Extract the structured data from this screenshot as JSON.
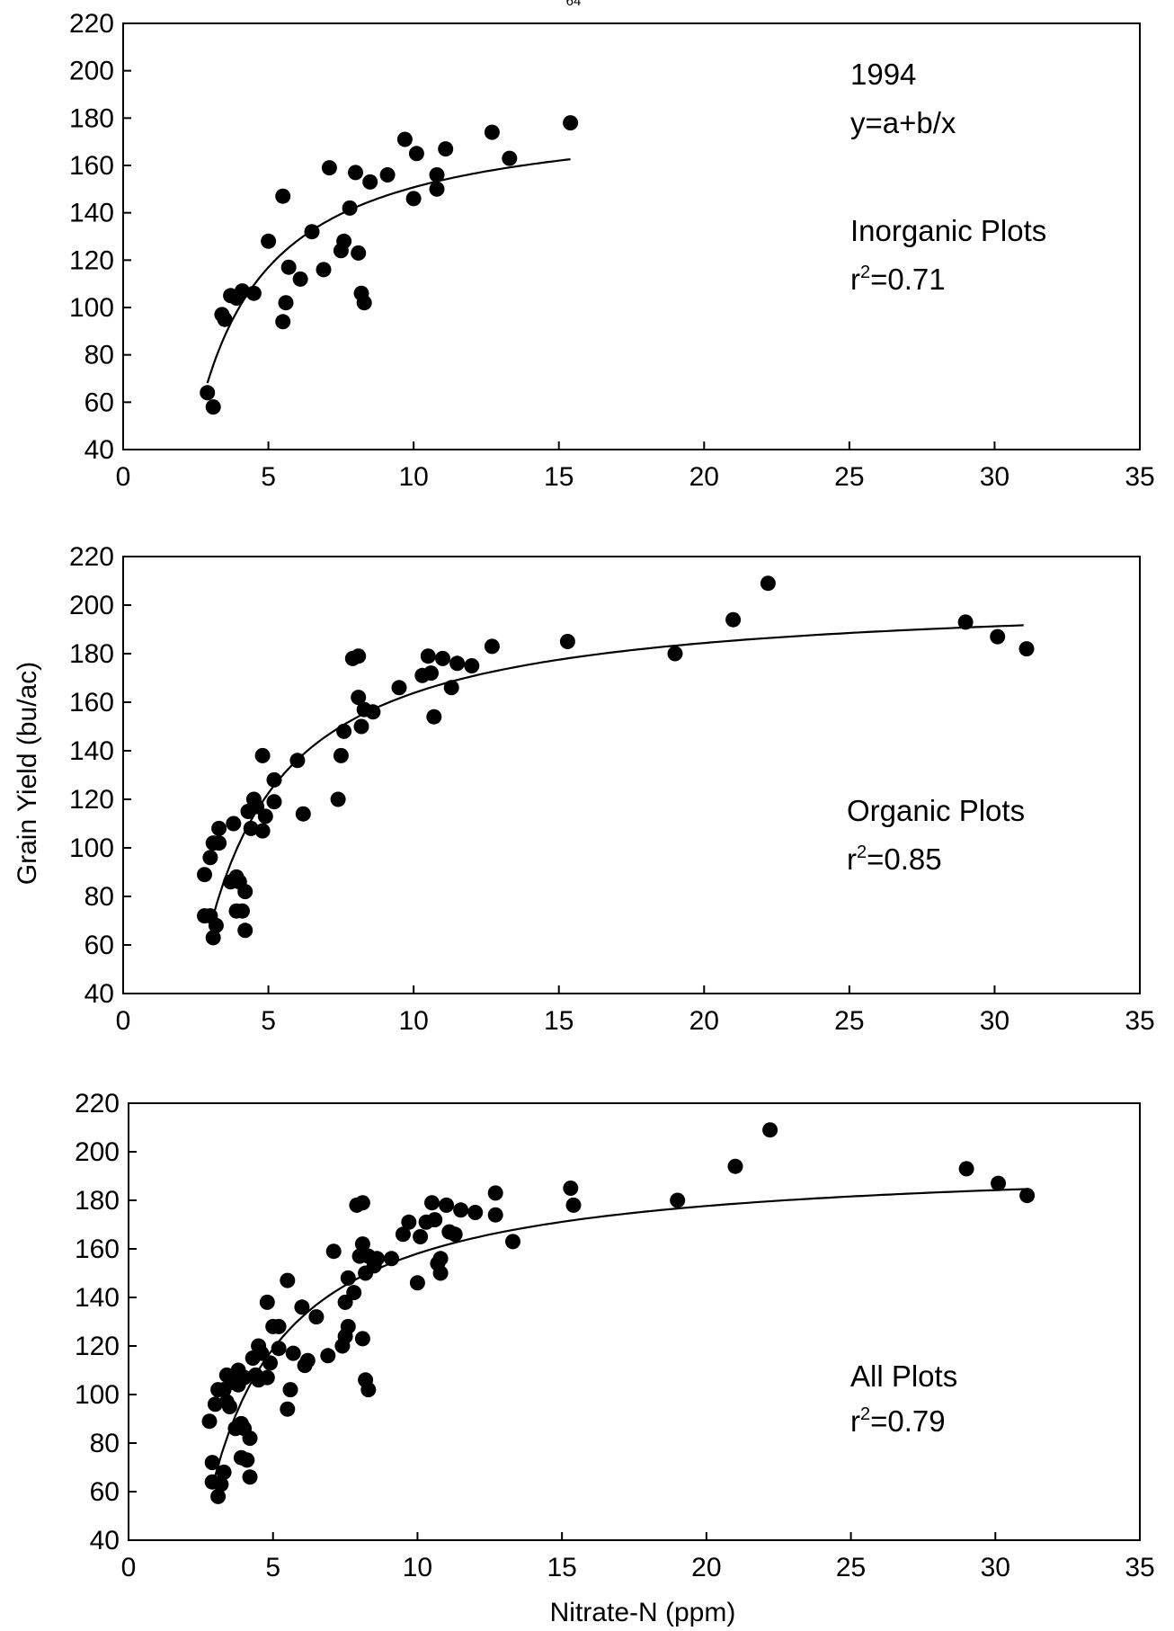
{
  "page_number": "64",
  "shared": {
    "xlabel": "Nitrate-N (ppm)",
    "ylabel": "Grain Yield (bu/ac)"
  },
  "chart_data": [
    {
      "type": "scatter",
      "title": "",
      "xlim": [
        0,
        35
      ],
      "ylim": [
        40,
        220
      ],
      "x_ticks": [
        0,
        5,
        10,
        15,
        20,
        25,
        30,
        35
      ],
      "y_ticks": [
        40,
        60,
        80,
        100,
        120,
        140,
        160,
        180,
        200,
        220
      ],
      "annotations": [
        "1994",
        "y=a+b/x",
        "Inorganic Plots",
        "r",
        "2",
        "=0.71"
      ],
      "fit": {
        "x_range": [
          2.9,
          15.4
        ],
        "points": [
          [
            2.9,
            64
          ],
          [
            3.5,
            92
          ],
          [
            4.5,
            112
          ],
          [
            6,
            128
          ],
          [
            8,
            141
          ],
          [
            10,
            150
          ],
          [
            12.5,
            157
          ],
          [
            15.4,
            163
          ]
        ]
      },
      "series": [
        {
          "points": [
            [
              2.9,
              64
            ],
            [
              3.1,
              58
            ],
            [
              3.4,
              97
            ],
            [
              3.5,
              95
            ],
            [
              3.7,
              105
            ],
            [
              3.9,
              104
            ],
            [
              4.1,
              107
            ],
            [
              4.5,
              106
            ],
            [
              5.0,
              128
            ],
            [
              5.5,
              147
            ],
            [
              5.6,
              102
            ],
            [
              5.5,
              94
            ],
            [
              5.7,
              117
            ],
            [
              6.1,
              112
            ],
            [
              6.5,
              132
            ],
            [
              6.9,
              116
            ],
            [
              7.1,
              159
            ],
            [
              7.5,
              124
            ],
            [
              7.6,
              128
            ],
            [
              7.8,
              142
            ],
            [
              8.0,
              157
            ],
            [
              8.1,
              123
            ],
            [
              8.2,
              106
            ],
            [
              8.3,
              102
            ],
            [
              8.5,
              153
            ],
            [
              9.1,
              156
            ],
            [
              9.7,
              171
            ],
            [
              10.0,
              146
            ],
            [
              10.1,
              165
            ],
            [
              10.8,
              156
            ],
            [
              10.8,
              150
            ],
            [
              11.1,
              167
            ],
            [
              12.7,
              174
            ],
            [
              13.3,
              163
            ],
            [
              15.4,
              178
            ]
          ]
        }
      ]
    },
    {
      "type": "scatter",
      "title": "",
      "xlim": [
        0,
        35
      ],
      "ylim": [
        40,
        220
      ],
      "x_ticks": [
        0,
        5,
        10,
        15,
        20,
        25,
        30,
        35
      ],
      "y_ticks": [
        40,
        60,
        80,
        100,
        120,
        140,
        160,
        180,
        200,
        220
      ],
      "annotations": [
        "Organic Plots",
        "r",
        "2",
        "=0.85"
      ],
      "fit": {
        "x_range": [
          3,
          31
        ],
        "points": [
          [
            3,
            70
          ],
          [
            3.5,
            88
          ],
          [
            4,
            101
          ],
          [
            5,
            120
          ],
          [
            6,
            134
          ],
          [
            8,
            152
          ],
          [
            10,
            165
          ],
          [
            12.5,
            173
          ],
          [
            15,
            178
          ],
          [
            20,
            185
          ],
          [
            25,
            189
          ],
          [
            31,
            192
          ]
        ]
      },
      "series": [
        {
          "points": [
            [
              2.8,
              89
            ],
            [
              2.8,
              72
            ],
            [
              3.0,
              96
            ],
            [
              3.0,
              72
            ],
            [
              3.1,
              102
            ],
            [
              3.1,
              63
            ],
            [
              3.2,
              68
            ],
            [
              3.3,
              108
            ],
            [
              3.3,
              102
            ],
            [
              3.7,
              86
            ],
            [
              3.8,
              110
            ],
            [
              3.9,
              88
            ],
            [
              3.9,
              74
            ],
            [
              4.0,
              86
            ],
            [
              4.1,
              74
            ],
            [
              4.2,
              82
            ],
            [
              4.2,
              66
            ],
            [
              4.3,
              115
            ],
            [
              4.4,
              108
            ],
            [
              4.5,
              120
            ],
            [
              4.6,
              117
            ],
            [
              4.8,
              107
            ],
            [
              4.9,
              113
            ],
            [
              4.8,
              138
            ],
            [
              5.2,
              119
            ],
            [
              5.2,
              128
            ],
            [
              6.0,
              136
            ],
            [
              6.2,
              114
            ],
            [
              7.4,
              120
            ],
            [
              7.5,
              138
            ],
            [
              7.6,
              148
            ],
            [
              7.9,
              178
            ],
            [
              8.1,
              162
            ],
            [
              8.1,
              179
            ],
            [
              8.2,
              150
            ],
            [
              8.3,
              157
            ],
            [
              8.6,
              156
            ],
            [
              9.5,
              166
            ],
            [
              10.3,
              171
            ],
            [
              10.5,
              179
            ],
            [
              10.6,
              172
            ],
            [
              10.7,
              154
            ],
            [
              11.0,
              178
            ],
            [
              11.3,
              166
            ],
            [
              11.5,
              176
            ],
            [
              12.0,
              175
            ],
            [
              12.7,
              183
            ],
            [
              15.3,
              185
            ],
            [
              19.0,
              180
            ],
            [
              21.0,
              194
            ],
            [
              22.2,
              209
            ],
            [
              29.0,
              193
            ],
            [
              30.1,
              187
            ],
            [
              31.1,
              182
            ]
          ]
        }
      ]
    },
    {
      "type": "scatter",
      "title": "",
      "xlim": [
        0,
        35
      ],
      "ylim": [
        40,
        220
      ],
      "x_ticks": [
        0,
        5,
        10,
        15,
        20,
        25,
        30,
        35
      ],
      "y_ticks": [
        40,
        60,
        80,
        100,
        120,
        140,
        160,
        180,
        200,
        220
      ],
      "annotations": [
        "All Plots",
        "r",
        "2",
        "=0.79"
      ],
      "fit": {
        "x_range": [
          3,
          31
        ],
        "points": [
          [
            3,
            68
          ],
          [
            3.5,
            86
          ],
          [
            4,
            99
          ],
          [
            5,
            117
          ],
          [
            6,
            130
          ],
          [
            8,
            147
          ],
          [
            10,
            159
          ],
          [
            12.5,
            166
          ],
          [
            15,
            172
          ],
          [
            20,
            178
          ],
          [
            25,
            182
          ],
          [
            31,
            185
          ]
        ]
      },
      "series": [
        {
          "points": [
            [
              2.8,
              89
            ],
            [
              2.9,
              72
            ],
            [
              2.9,
              64
            ],
            [
              3.0,
              96
            ],
            [
              3.1,
              102
            ],
            [
              3.1,
              58
            ],
            [
              3.2,
              63
            ],
            [
              3.3,
              68
            ],
            [
              3.3,
              102
            ],
            [
              3.4,
              97
            ],
            [
              3.4,
              108
            ],
            [
              3.5,
              95
            ],
            [
              3.6,
              105
            ],
            [
              3.7,
              86
            ],
            [
              3.8,
              110
            ],
            [
              3.8,
              104
            ],
            [
              3.9,
              88
            ],
            [
              3.9,
              74
            ],
            [
              4.0,
              107
            ],
            [
              4.0,
              86
            ],
            [
              4.1,
              73
            ],
            [
              4.2,
              82
            ],
            [
              4.2,
              66
            ],
            [
              4.3,
              115
            ],
            [
              4.4,
              108
            ],
            [
              4.5,
              120
            ],
            [
              4.5,
              106
            ],
            [
              4.6,
              117
            ],
            [
              4.8,
              107
            ],
            [
              4.9,
              113
            ],
            [
              4.8,
              138
            ],
            [
              5.0,
              128
            ],
            [
              5.2,
              119
            ],
            [
              5.2,
              128
            ],
            [
              5.5,
              147
            ],
            [
              5.6,
              102
            ],
            [
              5.5,
              94
            ],
            [
              5.7,
              117
            ],
            [
              6.0,
              136
            ],
            [
              6.1,
              112
            ],
            [
              6.2,
              114
            ],
            [
              6.5,
              132
            ],
            [
              6.9,
              116
            ],
            [
              7.1,
              159
            ],
            [
              7.4,
              120
            ],
            [
              7.5,
              124
            ],
            [
              7.5,
              138
            ],
            [
              7.6,
              128
            ],
            [
              7.6,
              148
            ],
            [
              7.8,
              142
            ],
            [
              7.9,
              178
            ],
            [
              8.0,
              157
            ],
            [
              8.1,
              162
            ],
            [
              8.1,
              179
            ],
            [
              8.1,
              123
            ],
            [
              8.2,
              150
            ],
            [
              8.2,
              106
            ],
            [
              8.3,
              102
            ],
            [
              8.3,
              157
            ],
            [
              8.5,
              153
            ],
            [
              8.6,
              156
            ],
            [
              9.1,
              156
            ],
            [
              9.5,
              166
            ],
            [
              9.7,
              171
            ],
            [
              10.0,
              146
            ],
            [
              10.1,
              165
            ],
            [
              10.3,
              171
            ],
            [
              10.5,
              179
            ],
            [
              10.6,
              172
            ],
            [
              10.7,
              154
            ],
            [
              10.8,
              156
            ],
            [
              10.8,
              150
            ],
            [
              11.0,
              178
            ],
            [
              11.1,
              167
            ],
            [
              11.3,
              166
            ],
            [
              11.5,
              176
            ],
            [
              12.0,
              175
            ],
            [
              12.7,
              183
            ],
            [
              12.7,
              174
            ],
            [
              13.3,
              163
            ],
            [
              15.3,
              185
            ],
            [
              15.4,
              178
            ],
            [
              19.0,
              180
            ],
            [
              21.0,
              194
            ],
            [
              22.2,
              209
            ],
            [
              29.0,
              193
            ],
            [
              30.1,
              187
            ],
            [
              31.1,
              182
            ]
          ]
        }
      ]
    }
  ]
}
